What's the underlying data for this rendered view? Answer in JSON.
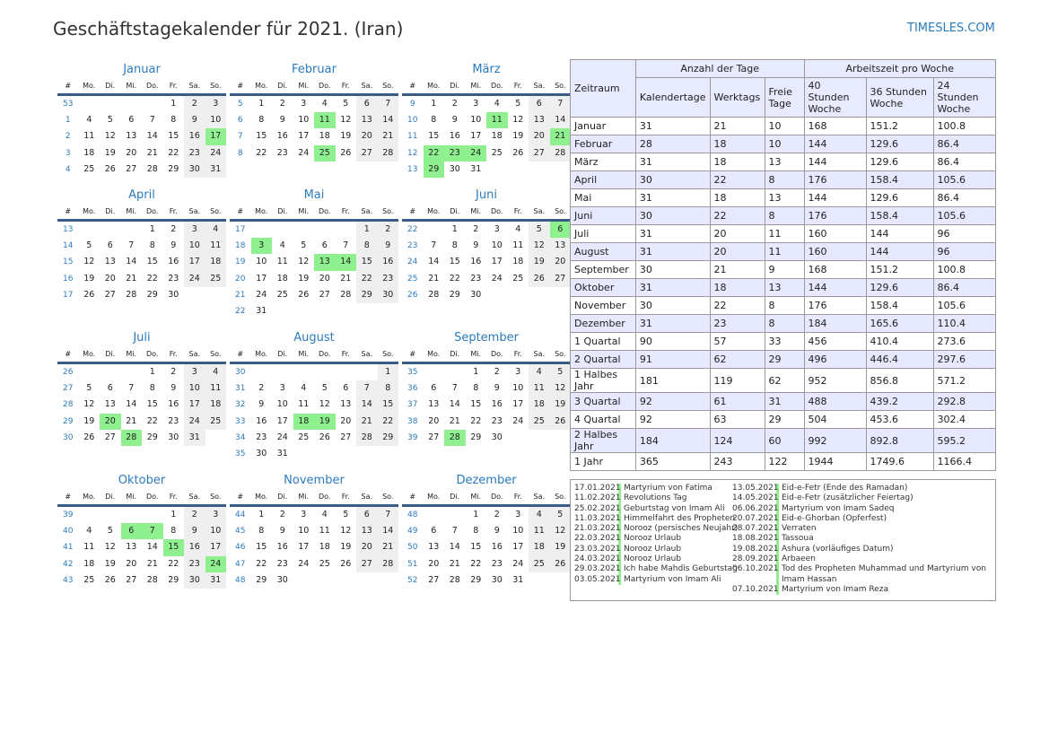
{
  "header": {
    "title": "Geschäftstagekalender für 2021. (Iran)",
    "site": "TIMESLES.COM"
  },
  "weekday_headers": [
    "#",
    "Mo.",
    "Di.",
    "Mi.",
    "Do.",
    "Fr.",
    "Sa.",
    "So."
  ],
  "months": [
    {
      "name": "Januar",
      "start": 5,
      "days": 31,
      "week": 53,
      "holidays": [
        17
      ]
    },
    {
      "name": "Februar",
      "start": 1,
      "days": 28,
      "week": 5,
      "holidays": [
        11,
        25
      ]
    },
    {
      "name": "März",
      "start": 1,
      "days": 31,
      "week": 9,
      "holidays": [
        11,
        21,
        22,
        23,
        24,
        29
      ]
    },
    {
      "name": "April",
      "start": 4,
      "days": 30,
      "week": 13,
      "holidays": []
    },
    {
      "name": "Mai",
      "start": 6,
      "days": 31,
      "week": 17,
      "holidays": [
        3,
        13,
        14
      ]
    },
    {
      "name": "Juni",
      "start": 2,
      "days": 30,
      "week": 22,
      "holidays": [
        6
      ]
    },
    {
      "name": "Juli",
      "start": 4,
      "days": 31,
      "week": 26,
      "holidays": [
        20,
        28
      ]
    },
    {
      "name": "August",
      "start": 7,
      "days": 31,
      "week": 30,
      "holidays": [
        18,
        19
      ]
    },
    {
      "name": "September",
      "start": 3,
      "days": 30,
      "week": 35,
      "holidays": [
        28
      ]
    },
    {
      "name": "Oktober",
      "start": 5,
      "days": 31,
      "week": 39,
      "holidays": [
        6,
        7,
        15,
        24
      ]
    },
    {
      "name": "November",
      "start": 1,
      "days": 30,
      "week": 44,
      "holidays": []
    },
    {
      "name": "Dezember",
      "start": 3,
      "days": 31,
      "week": 48,
      "holidays": []
    }
  ],
  "stats": {
    "h_zeitraum": "Zeitraum",
    "h_anzahl": "Anzahl der Tage",
    "h_arbeitszeit": "Arbeitszeit pro Woche",
    "sub": [
      "Kalendertage",
      "Werktags",
      "Freie Tage",
      "40 Stunden Woche",
      "36 Stunden Woche",
      "24 Stunden Woche"
    ],
    "rows": [
      [
        "Januar",
        "31",
        "21",
        "10",
        "168",
        "151.2",
        "100.8"
      ],
      [
        "Februar",
        "28",
        "18",
        "10",
        "144",
        "129.6",
        "86.4"
      ],
      [
        "März",
        "31",
        "18",
        "13",
        "144",
        "129.6",
        "86.4"
      ],
      [
        "April",
        "30",
        "22",
        "8",
        "176",
        "158.4",
        "105.6"
      ],
      [
        "Mai",
        "31",
        "18",
        "13",
        "144",
        "129.6",
        "86.4"
      ],
      [
        "Juni",
        "30",
        "22",
        "8",
        "176",
        "158.4",
        "105.6"
      ],
      [
        "Juli",
        "31",
        "20",
        "11",
        "160",
        "144",
        "96"
      ],
      [
        "August",
        "31",
        "20",
        "11",
        "160",
        "144",
        "96"
      ],
      [
        "September",
        "30",
        "21",
        "9",
        "168",
        "151.2",
        "100.8"
      ],
      [
        "Oktober",
        "31",
        "18",
        "13",
        "144",
        "129.6",
        "86.4"
      ],
      [
        "November",
        "30",
        "22",
        "8",
        "176",
        "158.4",
        "105.6"
      ],
      [
        "Dezember",
        "31",
        "23",
        "8",
        "184",
        "165.6",
        "110.4"
      ],
      [
        "1 Quartal",
        "90",
        "57",
        "33",
        "456",
        "410.4",
        "273.6"
      ],
      [
        "2 Quartal",
        "91",
        "62",
        "29",
        "496",
        "446.4",
        "297.6"
      ],
      [
        "1 Halbes Jahr",
        "181",
        "119",
        "62",
        "952",
        "856.8",
        "571.2"
      ],
      [
        "3 Quartal",
        "92",
        "61",
        "31",
        "488",
        "439.2",
        "292.8"
      ],
      [
        "4 Quartal",
        "92",
        "63",
        "29",
        "504",
        "453.6",
        "302.4"
      ],
      [
        "2 Halbes Jahr",
        "184",
        "124",
        "60",
        "992",
        "892.8",
        "595.2"
      ],
      [
        "1 Jahr",
        "365",
        "243",
        "122",
        "1944",
        "1749.6",
        "1166.4"
      ]
    ]
  },
  "holidays_left": [
    [
      "17.01.2021",
      "Martyrium von Fatima"
    ],
    [
      "11.02.2021",
      "Revolutions Tag"
    ],
    [
      "25.02.2021",
      "Geburtstag von Imam Ali"
    ],
    [
      "11.03.2021",
      "Himmelfahrt des Propheten"
    ],
    [
      "21.03.2021",
      "Norooz (persisches Neujahr)"
    ],
    [
      "22.03.2021",
      "Norooz Urlaub"
    ],
    [
      "23.03.2021",
      "Norooz Urlaub"
    ],
    [
      "24.03.2021",
      "Norooz Urlaub"
    ],
    [
      "29.03.2021",
      "Ich habe Mahdis Geburtstag"
    ],
    [
      "03.05.2021",
      "Martyrium von Imam Ali"
    ]
  ],
  "holidays_right": [
    [
      "13.05.2021",
      "Eid-e-Fetr (Ende des Ramadan)"
    ],
    [
      "14.05.2021",
      "Eid-e-Fetr (zusätzlicher Feiertag)"
    ],
    [
      "06.06.2021",
      "Martyrium von Imam Sadeq"
    ],
    [
      "20.07.2021",
      "Eid-e-Ghorban (Opferfest)"
    ],
    [
      "28.07.2021",
      "Verraten"
    ],
    [
      "18.08.2021",
      "Tassoua"
    ],
    [
      "19.08.2021",
      "Ashura (vorläufiges Datum)"
    ],
    [
      "28.09.2021",
      "Arbaeen"
    ],
    [
      "06.10.2021",
      "Tod des Propheten Muhammad und Martyrium von Imam Hassan"
    ],
    [
      "07.10.2021",
      "Martyrium von Imam Reza"
    ]
  ],
  "colors": {
    "accent": "#2b7bbf",
    "holiday": "#8ef08e",
    "weekend": "#efefef",
    "table_alt": "#e6e9ff",
    "header_line": "#3b5b86"
  }
}
